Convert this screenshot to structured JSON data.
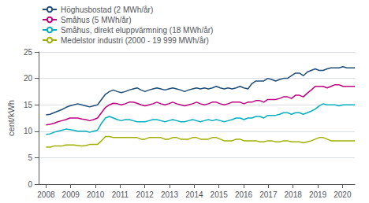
{
  "chart_data": {
    "type": "line",
    "ylabel": "cent/kWh",
    "xlim": [
      2007.7,
      2020.5
    ],
    "xticks": [
      2008,
      2009,
      2010,
      2011,
      2012,
      2013,
      2014,
      2015,
      2016,
      2017,
      2018,
      2019,
      2020
    ],
    "ylim": [
      0,
      25
    ],
    "yticks": [
      0,
      5,
      10,
      15,
      20,
      25
    ],
    "grid": true,
    "legend": "upper left",
    "x": [
      2008,
      2008.160256,
      2008.320513,
      2008.480769,
      2008.641026,
      2008.801282,
      2008.961538,
      2009.121795,
      2009.282051,
      2009.442308,
      2009.602564,
      2009.762821,
      2009.923077,
      2010.083333,
      2010.24359,
      2010.403846,
      2010.564103,
      2010.724359,
      2010.884615,
      2011.044872,
      2011.205128,
      2011.365385,
      2011.525641,
      2011.685897,
      2011.846154,
      2012.00641,
      2012.166667,
      2012.326923,
      2012.487179,
      2012.647436,
      2012.807692,
      2012.967949,
      2013.128205,
      2013.288462,
      2013.448718,
      2013.608974,
      2013.769231,
      2013.929487,
      2014.089744,
      2014.25,
      2014.410256,
      2014.570513,
      2014.730769,
      2014.891026,
      2015.051282,
      2015.211538,
      2015.371795,
      2015.532051,
      2015.692308,
      2015.852564,
      2016.012821,
      2016.173077,
      2016.333333,
      2016.49359,
      2016.653846,
      2016.814103,
      2016.974359,
      2017.134615,
      2017.294872,
      2017.455128,
      2017.615385,
      2017.775641,
      2017.935897,
      2018.096154,
      2018.25641,
      2018.416667,
      2018.576923,
      2018.737179,
      2018.897436,
      2019.057692,
      2019.217949,
      2019.378205,
      2019.538462,
      2019.698718,
      2019.858974,
      2020.019231,
      2020.179487,
      2020.339744,
      2020.5
    ],
    "series": [
      {
        "name": "Höghusbostad (2 MWh/år)",
        "color": "#1f4e79",
        "values": [
          13.1,
          13.2,
          13.5,
          13.8,
          14.1,
          14.5,
          14.8,
          15.0,
          15.2,
          15.0,
          14.8,
          14.6,
          14.8,
          15.0,
          16.0,
          17.0,
          17.5,
          17.8,
          17.5,
          17.3,
          17.5,
          17.8,
          18.0,
          18.2,
          17.8,
          17.5,
          17.8,
          18.0,
          18.2,
          18.0,
          17.8,
          18.0,
          18.2,
          18.0,
          17.8,
          17.5,
          17.8,
          18.0,
          18.2,
          18.0,
          18.2,
          18.0,
          18.2,
          18.5,
          18.2,
          18.0,
          18.2,
          18.0,
          18.2,
          18.5,
          18.2,
          18.0,
          19.0,
          19.5,
          19.5,
          19.5,
          20.0,
          19.8,
          19.5,
          19.8,
          20.0,
          20.0,
          20.5,
          21.0,
          21.0,
          20.5,
          21.2,
          21.5,
          21.8,
          21.5,
          21.5,
          21.8,
          22.0,
          22.0,
          22.0,
          22.2,
          22.0,
          22.0,
          22.0
        ]
      },
      {
        "name": "Småhus (5 MWh/år)",
        "color": "#c00080",
        "values": [
          11.2,
          11.3,
          11.5,
          11.8,
          12.0,
          12.2,
          12.5,
          12.5,
          12.5,
          12.3,
          12.2,
          12.0,
          12.2,
          12.5,
          13.5,
          14.5,
          15.0,
          15.3,
          15.2,
          15.0,
          15.2,
          15.5,
          15.5,
          15.3,
          15.0,
          14.8,
          15.0,
          15.2,
          15.5,
          15.2,
          15.0,
          15.2,
          15.5,
          15.2,
          15.0,
          14.8,
          15.0,
          15.2,
          15.5,
          15.2,
          15.0,
          15.2,
          15.5,
          15.5,
          15.2,
          15.0,
          15.2,
          15.5,
          15.5,
          15.5,
          15.2,
          15.5,
          15.5,
          15.8,
          15.8,
          15.5,
          16.0,
          16.0,
          16.0,
          16.2,
          16.5,
          16.5,
          16.2,
          16.8,
          16.8,
          16.5,
          17.2,
          17.8,
          18.5,
          18.5,
          18.5,
          18.2,
          18.5,
          18.8,
          18.8,
          18.5,
          18.5,
          18.5,
          18.5
        ]
      },
      {
        "name": "Småhus, direkt eluppvärmning (18 MWh/år)",
        "color": "#00b0c0",
        "values": [
          9.4,
          9.5,
          9.8,
          10.0,
          10.2,
          10.4,
          10.3,
          10.2,
          10.0,
          10.0,
          10.0,
          9.8,
          10.0,
          10.2,
          11.5,
          12.5,
          12.8,
          12.5,
          12.2,
          12.0,
          12.2,
          12.2,
          12.0,
          11.8,
          11.8,
          11.8,
          12.0,
          12.2,
          12.2,
          12.0,
          11.8,
          12.0,
          12.2,
          12.0,
          11.8,
          11.8,
          12.0,
          12.2,
          12.0,
          11.8,
          12.0,
          12.2,
          12.0,
          12.2,
          12.0,
          11.8,
          12.0,
          12.2,
          12.5,
          12.5,
          12.2,
          12.5,
          12.5,
          12.8,
          12.8,
          12.5,
          13.0,
          13.0,
          13.0,
          13.2,
          13.5,
          13.5,
          13.2,
          13.5,
          13.5,
          13.2,
          13.5,
          13.8,
          14.2,
          14.8,
          15.2,
          15.0,
          15.0,
          15.0,
          14.8,
          15.0,
          15.0,
          15.0,
          15.0
        ]
      },
      {
        "name": "Medelstor industri (2000 - 19 999 MWh/år)",
        "color": "#a0b000",
        "values": [
          7.0,
          7.0,
          7.2,
          7.2,
          7.2,
          7.4,
          7.4,
          7.4,
          7.3,
          7.2,
          7.3,
          7.5,
          7.5,
          7.5,
          8.2,
          9.0,
          9.0,
          8.8,
          8.8,
          8.8,
          8.8,
          8.8,
          8.8,
          8.8,
          8.5,
          8.5,
          8.8,
          8.8,
          8.8,
          8.8,
          8.5,
          8.5,
          8.8,
          8.8,
          8.5,
          8.5,
          8.5,
          8.8,
          8.8,
          8.5,
          8.5,
          8.5,
          8.8,
          8.8,
          8.5,
          8.2,
          8.2,
          8.2,
          8.5,
          8.5,
          8.2,
          8.2,
          8.2,
          8.2,
          8.0,
          8.0,
          8.2,
          8.2,
          8.0,
          8.0,
          8.2,
          8.2,
          8.0,
          8.0,
          8.0,
          7.8,
          8.0,
          8.2,
          8.5,
          8.8,
          8.8,
          8.5,
          8.2,
          8.2,
          8.2,
          8.2,
          8.2,
          8.2,
          8.2
        ]
      }
    ]
  }
}
